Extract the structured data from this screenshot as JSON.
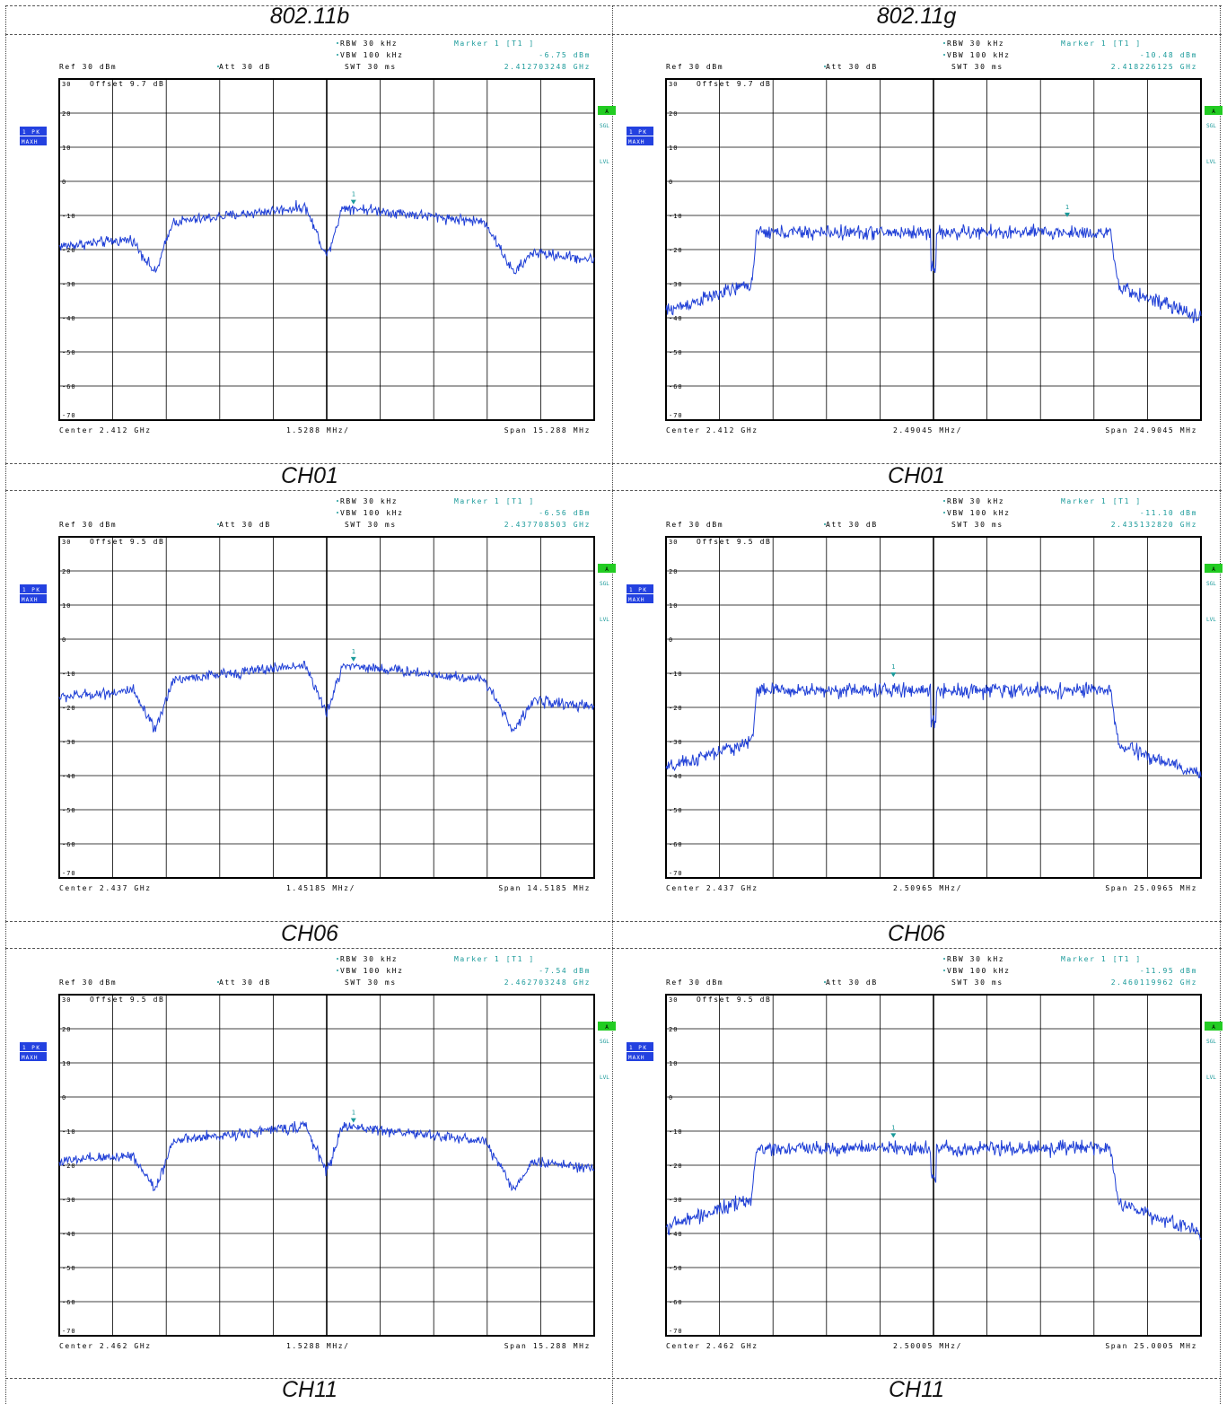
{
  "columns": [
    {
      "title": "802.11b"
    },
    {
      "title": "802.11g"
    }
  ],
  "captions": [
    [
      "CH01",
      "CH06",
      "CH11"
    ],
    [
      "CH01",
      "CH06",
      "CH11"
    ]
  ],
  "colors": {
    "trace": "#1f3fd6",
    "cyan": "#1a9a9a",
    "side_badge": "#2341e0",
    "green_badge": "#22cc22"
  },
  "side_badge": {
    "line1": "1 PK",
    "line2": "MAXH"
  },
  "right_labels": {
    "box": "A",
    "sgl": "SGL",
    "lvl": "LVL"
  },
  "y_ticks": [
    "30",
    "20",
    "10",
    "0",
    "-10",
    "-20",
    "-30",
    "-40",
    "-50",
    "-60",
    "-70"
  ],
  "chart_data": [
    {
      "type": "line",
      "standard": "802.11b",
      "channel": "CH01",
      "header": {
        "rbw": "RBW 30 kHz",
        "vbw": "VBW 100 kHz",
        "swt": "SWT 30 ms",
        "ref": "Ref  30 dBm",
        "att": "Att  30 dB",
        "marker_title": "Marker 1 [T1 ]",
        "marker_level": "-6.75 dBm",
        "marker_freq": "2.412703248 GHz"
      },
      "offset": "Offset  9.7 dB",
      "footer": {
        "center": "Center 2.412 GHz",
        "per_div": "1.5288 MHz/",
        "span": "Span 15.288 MHz"
      },
      "ylim": [
        -70,
        30
      ],
      "xlim": [
        -5,
        5
      ],
      "profile": "dsss",
      "levels": {
        "edge": -19,
        "notch": -27,
        "body": -10,
        "peak": -7.5,
        "center_dip": -22,
        "edge_out": -22
      },
      "marker": {
        "x": 0.5,
        "y": -6.75
      }
    },
    {
      "type": "line",
      "standard": "802.11g",
      "channel": "CH01",
      "header": {
        "rbw": "RBW 30 kHz",
        "vbw": "VBW 100 kHz",
        "swt": "SWT 30 ms",
        "ref": "Ref  30 dBm",
        "att": "Att  30 dB",
        "marker_title": "Marker 1 [T1 ]",
        "marker_level": "-10.48 dBm",
        "marker_freq": "2.418226125 GHz"
      },
      "offset": "Offset  9.7 dB",
      "footer": {
        "center": "Center 2.412 GHz",
        "per_div": "2.49045 MHz/",
        "span": "Span 24.9045 MHz"
      },
      "ylim": [
        -70,
        30
      ],
      "xlim": [
        -5,
        5
      ],
      "profile": "ofdm",
      "levels": {
        "floor_l": -37,
        "shoulder": -30,
        "body": -15,
        "center_dip": -25,
        "floor_r": -40
      },
      "marker": {
        "x": 2.5,
        "y": -10.48
      }
    },
    {
      "type": "line",
      "standard": "802.11b",
      "channel": "CH06",
      "header": {
        "rbw": "RBW 30 kHz",
        "vbw": "VBW 100 kHz",
        "swt": "SWT 30 ms",
        "ref": "Ref  30 dBm",
        "att": "Att  30 dB",
        "marker_title": "Marker 1 [T1 ]",
        "marker_level": "-6.56 dBm",
        "marker_freq": "2.437708503 GHz"
      },
      "offset": "Offset  9.5 dB",
      "footer": {
        "center": "Center 2.437 GHz",
        "per_div": "1.45185 MHz/",
        "span": "Span 14.5185 MHz"
      },
      "ylim": [
        -70,
        30
      ],
      "xlim": [
        -5,
        5
      ],
      "profile": "dsss",
      "levels": {
        "edge": -17,
        "notch": -27,
        "body": -10,
        "peak": -7.5,
        "center_dip": -22,
        "edge_out": -19
      },
      "marker": {
        "x": 0.5,
        "y": -6.56
      }
    },
    {
      "type": "line",
      "standard": "802.11g",
      "channel": "CH06",
      "header": {
        "rbw": "RBW 30 kHz",
        "vbw": "VBW 100 kHz",
        "swt": "SWT 30 ms",
        "ref": "Ref  30 dBm",
        "att": "Att  30 dB",
        "marker_title": "Marker 1 [T1 ]",
        "marker_level": "-11.10 dBm",
        "marker_freq": "2.435132820 GHz"
      },
      "offset": "Offset  9.5 dB",
      "footer": {
        "center": "Center 2.437 GHz",
        "per_div": "2.50965 MHz/",
        "span": "Span 25.0965 MHz"
      },
      "ylim": [
        -70,
        30
      ],
      "xlim": [
        -5,
        5
      ],
      "profile": "ofdm",
      "levels": {
        "floor_l": -37,
        "shoulder": -30,
        "body": -15,
        "center_dip": -24,
        "floor_r": -40
      },
      "marker": {
        "x": -0.75,
        "y": -11.1
      }
    },
    {
      "type": "line",
      "standard": "802.11b",
      "channel": "CH11",
      "header": {
        "rbw": "RBW 30 kHz",
        "vbw": "VBW 100 kHz",
        "swt": "SWT 30 ms",
        "ref": "Ref  30 dBm",
        "att": "Att  30 dB",
        "marker_title": "Marker 1 [T1 ]",
        "marker_level": "-7.54 dBm",
        "marker_freq": "2.462703248 GHz"
      },
      "offset": "Offset  9.5 dB",
      "footer": {
        "center": "Center 2.462 GHz",
        "per_div": "1.5288 MHz/",
        "span": "Span 15.288 MHz"
      },
      "ylim": [
        -70,
        30
      ],
      "xlim": [
        -5,
        5
      ],
      "profile": "dsss",
      "levels": {
        "edge": -19,
        "notch": -27,
        "body": -11,
        "peak": -8.5,
        "center_dip": -22,
        "edge_out": -20
      },
      "marker": {
        "x": 0.5,
        "y": -7.54
      }
    },
    {
      "type": "line",
      "standard": "802.11g",
      "channel": "CH11",
      "header": {
        "rbw": "RBW 30 kHz",
        "vbw": "VBW 100 kHz",
        "swt": "SWT 30 ms",
        "ref": "Ref  30 dBm",
        "att": "Att  30 dB",
        "marker_title": "Marker 1 [T1 ]",
        "marker_level": "-11.95 dBm",
        "marker_freq": "2.460119962 GHz"
      },
      "offset": "Offset  9.5 dB",
      "footer": {
        "center": "Center 2.462 GHz",
        "per_div": "2.50005 MHz/",
        "span": "Span 25.0005 MHz"
      },
      "ylim": [
        -70,
        30
      ],
      "xlim": [
        -5,
        5
      ],
      "profile": "ofdm",
      "levels": {
        "floor_l": -37,
        "shoulder": -30,
        "body": -15,
        "center_dip": -24,
        "floor_r": -40
      },
      "marker": {
        "x": -0.75,
        "y": -11.95
      }
    }
  ]
}
